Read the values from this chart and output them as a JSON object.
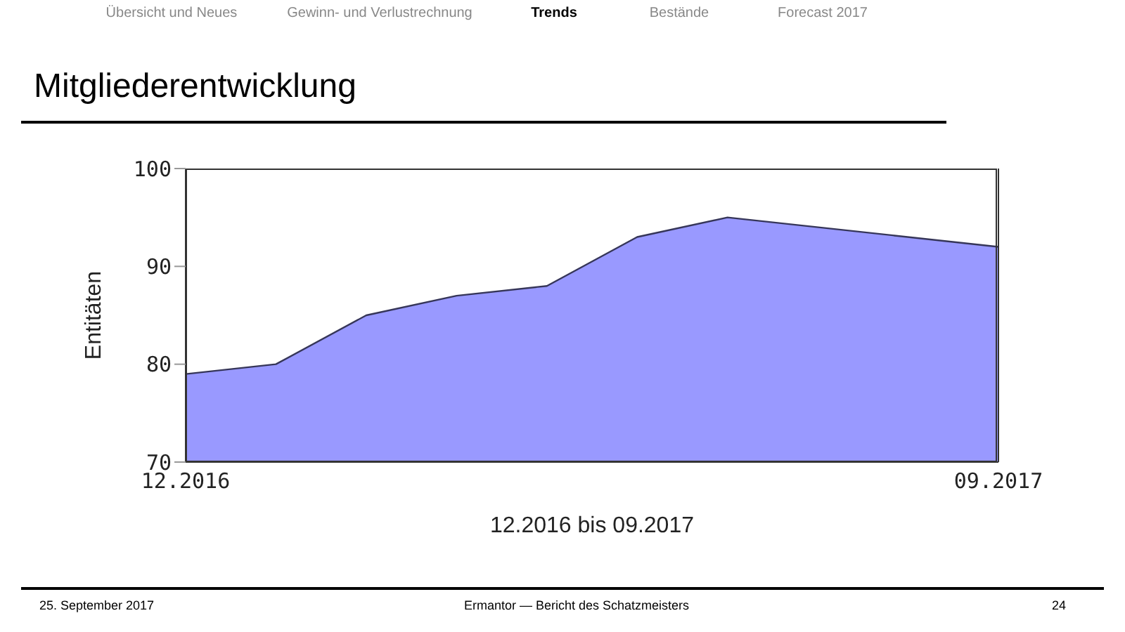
{
  "chart_data": {
    "type": "area",
    "title": "Mitgliederentwicklung",
    "xlabel": "12.2016 bis 09.2017",
    "ylabel": "Entitäten",
    "x": [
      "2016-12",
      "2017-01",
      "2017-02",
      "2017-03",
      "2017-04",
      "2017-05",
      "2017-06",
      "2017-09"
    ],
    "values": [
      79,
      80,
      85,
      87,
      88,
      93,
      95,
      92
    ],
    "color": "#9999ff",
    "xlim": [
      "2016-12",
      "2017-09"
    ],
    "xticks": [
      {
        "value": "2016-12",
        "label": "12.2016"
      },
      {
        "value": "2017-09",
        "label": "09.2017"
      }
    ],
    "ylim": [
      70,
      100
    ],
    "yticks": [
      70,
      80,
      90,
      100
    ],
    "annotations": [
      "Übersicht und Neues",
      "Gewinn- und Verlustrechnung",
      "Trends",
      "Bestände",
      "Forecast 2017",
      "25. September 2017",
      "Ermantor — Bericht des Schatzmeisters",
      "24"
    ]
  }
}
